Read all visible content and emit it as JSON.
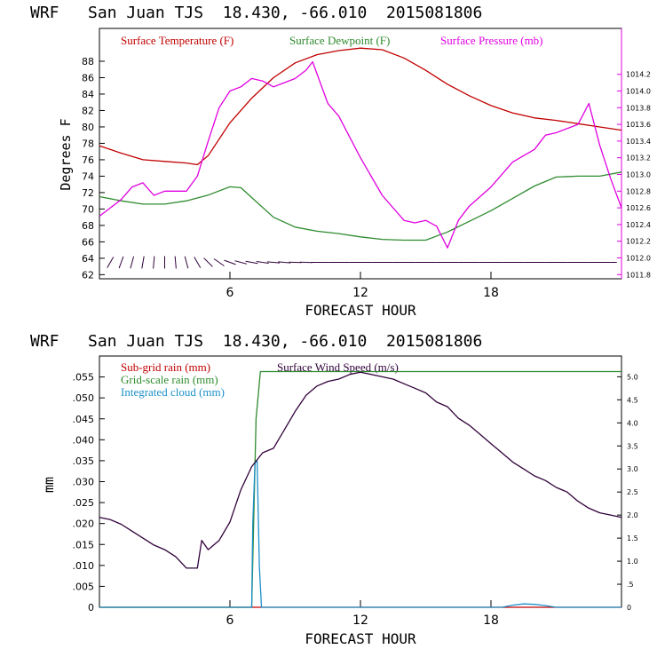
{
  "colors": {
    "temperature": "#c00000",
    "dewpoint": "#2e8b2e",
    "pressure": "#e000e0",
    "subgrid_rain": "#c00000",
    "wind_speed": "#30003a",
    "gridscale_rain": "#2e8b2e",
    "cloud": "#1e90c8",
    "axis": "#000000"
  },
  "chart_data": [
    {
      "type": "line",
      "title": "WRF   San Juan TJS  18.430, -66.010  2015081806",
      "xlabel": "FORECAST HOUR",
      "ylabel": "Degrees F",
      "xlim": [
        0,
        24
      ],
      "ylim": [
        61.5,
        92
      ],
      "y2lim": [
        1011.75,
        1014.75
      ],
      "x_ticks": [
        6,
        12,
        18
      ],
      "y_ticks": [
        62,
        64,
        66,
        68,
        70,
        72,
        74,
        76,
        78,
        80,
        82,
        84,
        86,
        88
      ],
      "y2_ticks": [
        "1011.8",
        "1012.0",
        "1012.2",
        "1012.4",
        "1012.6",
        "1012.8",
        "1013.0",
        "1013.2",
        "1013.4",
        "1013.6",
        "1013.8",
        "1014.0",
        "1014.2"
      ],
      "series": [
        {
          "name": "Surface Temperature (F)",
          "axis": "left",
          "x": [
            0,
            1,
            2,
            3,
            4,
            4.5,
            5,
            6,
            7,
            8,
            9,
            10,
            11,
            12,
            13,
            14,
            15,
            16,
            17,
            18,
            19,
            20,
            21,
            22,
            23,
            24
          ],
          "values": [
            77.7,
            76.8,
            76.0,
            75.8,
            75.6,
            75.4,
            76.5,
            80.5,
            83.5,
            86.0,
            87.8,
            88.8,
            89.3,
            89.6,
            89.4,
            88.4,
            86.9,
            85.2,
            83.8,
            82.6,
            81.7,
            81.1,
            80.8,
            80.4,
            80.0,
            79.6
          ]
        },
        {
          "name": "Surface Dewpoint (F)",
          "axis": "left",
          "x": [
            0,
            1,
            2,
            3,
            4,
            5,
            6,
            6.5,
            7,
            8,
            9,
            10,
            11,
            12,
            13,
            14,
            15,
            16,
            17,
            18,
            19,
            20,
            21,
            22,
            23,
            24
          ],
          "values": [
            71.5,
            71.0,
            70.6,
            70.6,
            71.0,
            71.7,
            72.7,
            72.6,
            71.4,
            69.0,
            67.8,
            67.3,
            67.0,
            66.6,
            66.3,
            66.2,
            66.2,
            67.2,
            68.5,
            69.8,
            71.3,
            72.8,
            73.9,
            74.0,
            74.0,
            74.5
          ]
        },
        {
          "name": "Surface Pressure (mb)",
          "axis": "right",
          "x": [
            0,
            0.5,
            1,
            1.5,
            2,
            2.5,
            3,
            3.5,
            4,
            4.5,
            5,
            5.5,
            6,
            6.5,
            7,
            7.5,
            8,
            8.5,
            9,
            9.5,
            9.8,
            10.5,
            11,
            12,
            13,
            14,
            14.5,
            15,
            15.5,
            16,
            16.5,
            17,
            18,
            19,
            20,
            20.5,
            21,
            22,
            22.5,
            23,
            23.5,
            24
          ],
          "values": [
            1012.5,
            1012.6,
            1012.7,
            1012.85,
            1012.9,
            1012.75,
            1012.8,
            1012.8,
            1012.8,
            1012.98,
            1013.4,
            1013.8,
            1014.0,
            1014.05,
            1014.15,
            1014.12,
            1014.05,
            1014.1,
            1014.15,
            1014.25,
            1014.35,
            1013.85,
            1013.7,
            1013.2,
            1012.75,
            1012.45,
            1012.42,
            1012.45,
            1012.38,
            1012.12,
            1012.45,
            1012.62,
            1012.85,
            1013.15,
            1013.3,
            1013.47,
            1013.5,
            1013.6,
            1013.85,
            1013.35,
            1012.95,
            1012.6
          ]
        }
      ],
      "wind_barbs": {
        "label": "wind barbs along 63.5 F",
        "x": [
          0.5,
          1,
          1.5,
          2,
          2.5,
          3,
          3.5,
          4,
          4.5,
          5,
          5.5,
          6,
          6.5,
          7,
          7.5,
          8,
          8.5,
          9,
          9.5,
          10,
          10.5,
          11,
          11.5,
          12,
          12.5,
          13,
          13.5,
          14,
          14.5,
          15,
          15.5,
          16,
          16.5,
          17,
          17.5,
          18,
          18.5,
          19,
          19.5,
          20,
          20.5,
          21,
          21.5,
          22,
          22.5,
          23,
          23.5
        ],
        "direction_deg": [
          150,
          160,
          165,
          170,
          175,
          180,
          185,
          195,
          210,
          225,
          235,
          250,
          255,
          260,
          262,
          265,
          265,
          268,
          268,
          270,
          270,
          270,
          270,
          270,
          270,
          270,
          270,
          270,
          270,
          270,
          270,
          270,
          270,
          270,
          270,
          270,
          270,
          270,
          270,
          270,
          270,
          270,
          270,
          270,
          270,
          270,
          270
        ]
      }
    },
    {
      "type": "line",
      "title": "WRF   San Juan TJS  18.430, -66.010  2015081806",
      "xlabel": "FORECAST HOUR",
      "ylabel": "mm",
      "xlim": [
        0,
        24
      ],
      "ylim": [
        0,
        0.06
      ],
      "y2lim": [
        0,
        5.45
      ],
      "x_ticks": [
        6,
        12,
        18
      ],
      "y_ticks": [
        ".055",
        ".050",
        ".045",
        ".040",
        ".035",
        ".030",
        ".025",
        ".020",
        ".015",
        ".010",
        ".005",
        "0"
      ],
      "y2_ticks": [
        "5.0",
        "4.5",
        "4.0",
        "3.5",
        "3.0",
        "2.5",
        "2.0",
        "1.5",
        "1.0",
        ".5",
        "0"
      ],
      "series": [
        {
          "name": "Sub-grid rain (mm)",
          "axis": "left",
          "x": [
            0,
            24
          ],
          "values": [
            0,
            0
          ]
        },
        {
          "name": "Grid-scale rain (mm)",
          "axis": "left",
          "x": [
            0,
            7.0,
            7.2,
            7.4,
            24
          ],
          "values": [
            0,
            0,
            0.045,
            0.0563,
            0.0563
          ]
        },
        {
          "name": "Integrated cloud (mm)",
          "axis": "left",
          "x": [
            0,
            7.0,
            7.05,
            7.15,
            7.25,
            7.35,
            7.45,
            18.5,
            19,
            19.5,
            20,
            20.5,
            21,
            24
          ],
          "values": [
            0,
            0,
            0.02,
            0.0345,
            0.035,
            0.01,
            0,
            0,
            0.0005,
            0.0008,
            0.0007,
            0.0004,
            0,
            0
          ]
        },
        {
          "name": "Surface Wind Speed (m/s)",
          "axis": "right",
          "x": [
            0,
            0.5,
            1,
            1.5,
            2,
            2.5,
            3,
            3.5,
            4,
            4.5,
            4.7,
            5,
            5.5,
            6,
            6.5,
            7,
            7.5,
            8,
            8.5,
            9,
            9.5,
            10,
            10.5,
            11,
            11.5,
            12,
            12.5,
            13,
            13.5,
            14,
            14.5,
            15,
            15.5,
            16,
            16.5,
            17,
            17.5,
            18,
            18.5,
            19,
            19.5,
            20,
            20.5,
            21,
            21.5,
            22,
            22.5,
            23,
            23.5,
            24
          ],
          "values": [
            1.95,
            1.9,
            1.8,
            1.65,
            1.5,
            1.35,
            1.25,
            1.1,
            0.85,
            0.85,
            1.45,
            1.25,
            1.45,
            1.85,
            2.55,
            3.05,
            3.35,
            3.45,
            3.85,
            4.25,
            4.6,
            4.8,
            4.9,
            4.95,
            5.05,
            5.1,
            5.05,
            5.0,
            4.95,
            4.85,
            4.75,
            4.65,
            4.45,
            4.35,
            4.1,
            3.95,
            3.75,
            3.55,
            3.35,
            3.15,
            3.0,
            2.85,
            2.75,
            2.6,
            2.5,
            2.3,
            2.15,
            2.05,
            2.0,
            1.95
          ]
        }
      ]
    }
  ]
}
